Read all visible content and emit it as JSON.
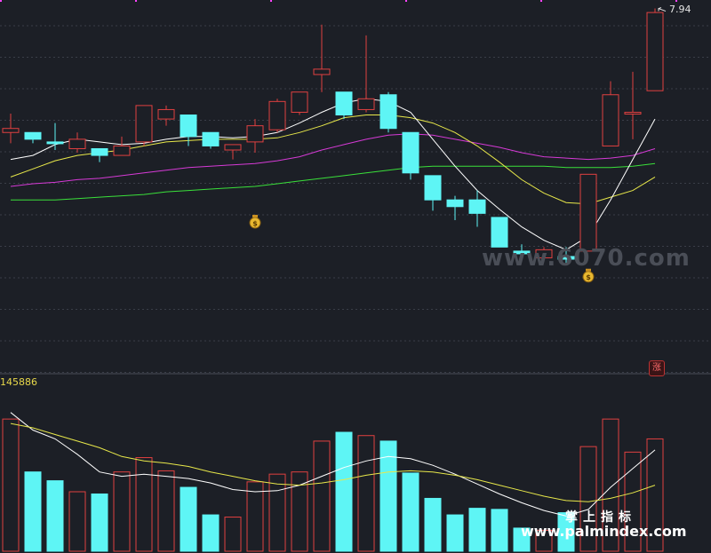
{
  "chart_data": [
    {
      "type": "candlestick",
      "ylim": [
        5.3,
        8.0
      ],
      "last_price_label": "7.94",
      "colors": {
        "up": "#e04040",
        "down": "#5ef5f5",
        "ma5": "#ffffff",
        "ma10": "#e8e84a",
        "ma20": "#d63ad6",
        "ma60": "#3ae03a",
        "grid": "#3a3e48",
        "background": "#1c1f26"
      },
      "candles": [
        {
          "o": 7.05,
          "h": 7.19,
          "l": 6.97,
          "c": 7.08
        },
        {
          "o": 7.05,
          "h": 7.05,
          "l": 6.97,
          "c": 7.0
        },
        {
          "o": 6.98,
          "h": 7.12,
          "l": 6.92,
          "c": 6.97
        },
        {
          "o": 6.93,
          "h": 7.05,
          "l": 6.9,
          "c": 7.0
        },
        {
          "o": 6.93,
          "h": 6.93,
          "l": 6.83,
          "c": 6.88
        },
        {
          "o": 6.88,
          "h": 7.02,
          "l": 6.88,
          "c": 6.95
        },
        {
          "o": 6.98,
          "h": 7.25,
          "l": 6.95,
          "c": 7.25
        },
        {
          "o": 7.15,
          "h": 7.25,
          "l": 7.1,
          "c": 7.22
        },
        {
          "o": 7.18,
          "h": 7.18,
          "l": 6.95,
          "c": 7.02
        },
        {
          "o": 7.05,
          "h": 7.05,
          "l": 6.93,
          "c": 6.95
        },
        {
          "o": 6.92,
          "h": 6.96,
          "l": 6.85,
          "c": 6.96
        },
        {
          "o": 6.98,
          "h": 7.15,
          "l": 6.9,
          "c": 7.1
        },
        {
          "o": 7.07,
          "h": 7.3,
          "l": 7.05,
          "c": 7.28
        },
        {
          "o": 7.2,
          "h": 7.35,
          "l": 7.18,
          "c": 7.35
        },
        {
          "o": 7.48,
          "h": 7.85,
          "l": 7.35,
          "c": 7.52
        },
        {
          "o": 7.35,
          "h": 7.35,
          "l": 7.15,
          "c": 7.18
        },
        {
          "o": 7.22,
          "h": 7.77,
          "l": 7.2,
          "c": 7.3
        },
        {
          "o": 7.33,
          "h": 7.35,
          "l": 7.05,
          "c": 7.08
        },
        {
          "o": 7.05,
          "h": 7.05,
          "l": 6.7,
          "c": 6.75
        },
        {
          "o": 6.73,
          "h": 6.73,
          "l": 6.47,
          "c": 6.55
        },
        {
          "o": 6.55,
          "h": 6.58,
          "l": 6.4,
          "c": 6.5
        },
        {
          "o": 6.55,
          "h": 6.62,
          "l": 6.35,
          "c": 6.45
        },
        {
          "o": 6.42,
          "h": 6.42,
          "l": 6.2,
          "c": 6.2
        },
        {
          "o": 6.17,
          "h": 6.22,
          "l": 6.11,
          "c": 6.15
        },
        {
          "o": 6.12,
          "h": 6.2,
          "l": 6.12,
          "c": 6.18
        },
        {
          "o": 6.13,
          "h": 6.2,
          "l": 6.07,
          "c": 6.11
        },
        {
          "o": 6.17,
          "h": 6.74,
          "l": 6.17,
          "c": 6.74
        },
        {
          "o": 6.95,
          "h": 7.43,
          "l": 6.95,
          "c": 7.33
        },
        {
          "o": 7.2,
          "h": 7.5,
          "l": 7.0,
          "c": 7.2
        },
        {
          "o": 7.36,
          "h": 7.97,
          "l": 7.36,
          "c": 7.94
        }
      ],
      "ma5": [
        6.85,
        6.88,
        6.96,
        7.0,
        6.98,
        6.96,
        6.97,
        7.0,
        7.02,
        7.02,
        7.01,
        7.02,
        7.05,
        7.12,
        7.2,
        7.27,
        7.3,
        7.28,
        7.2,
        7.0,
        6.8,
        6.62,
        6.48,
        6.35,
        6.25,
        6.18,
        6.28,
        6.55,
        6.85,
        7.15
      ],
      "ma10": [
        6.72,
        6.78,
        6.84,
        6.88,
        6.9,
        6.92,
        6.95,
        6.98,
        6.99,
        7.0,
        7.0,
        7.0,
        7.01,
        7.05,
        7.1,
        7.16,
        7.18,
        7.18,
        7.16,
        7.12,
        7.05,
        6.95,
        6.83,
        6.7,
        6.6,
        6.53,
        6.52,
        6.57,
        6.62,
        6.72
      ],
      "ma20": [
        6.65,
        6.67,
        6.68,
        6.7,
        6.71,
        6.73,
        6.75,
        6.77,
        6.79,
        6.8,
        6.81,
        6.82,
        6.84,
        6.87,
        6.92,
        6.96,
        7.0,
        7.03,
        7.04,
        7.03,
        7.0,
        6.97,
        6.94,
        6.9,
        6.87,
        6.86,
        6.85,
        6.86,
        6.88,
        6.93
      ],
      "ma60": [
        6.55,
        6.55,
        6.55,
        6.56,
        6.57,
        6.58,
        6.59,
        6.61,
        6.62,
        6.63,
        6.64,
        6.65,
        6.67,
        6.69,
        6.71,
        6.73,
        6.75,
        6.77,
        6.79,
        6.8,
        6.8,
        6.8,
        6.8,
        6.8,
        6.8,
        6.79,
        6.79,
        6.79,
        6.8,
        6.82
      ],
      "annotations": [
        {
          "icon": "money-bag-icon",
          "at_index": 11,
          "y": 6.38
        },
        {
          "icon": "money-bag-icon",
          "at_index": 26,
          "y": 5.98
        },
        {
          "icon": "arrow-left-icon",
          "at_index": 29,
          "y": 7.97
        }
      ]
    },
    {
      "type": "bar",
      "value_label": "145886",
      "ylim": [
        0,
        145886
      ],
      "values": [
        120000,
        72000,
        64000,
        54000,
        52000,
        72000,
        85000,
        73000,
        58000,
        33000,
        31000,
        63000,
        70000,
        72000,
        100000,
        108000,
        105000,
        100000,
        71000,
        48000,
        33000,
        39000,
        38000,
        21000,
        19000,
        35000,
        95000,
        120000,
        90000,
        102000
      ],
      "ma1": [
        126000,
        110000,
        102000,
        88000,
        72000,
        68000,
        70000,
        68000,
        66000,
        62000,
        56000,
        54000,
        55000,
        60000,
        68000,
        76000,
        82000,
        86000,
        84000,
        78000,
        70000,
        61000,
        52000,
        44000,
        37000,
        32000,
        38000,
        58000,
        75000,
        92000
      ],
      "ma2": [
        116000,
        112000,
        106000,
        100000,
        94000,
        86000,
        82000,
        80000,
        77000,
        72000,
        68000,
        64000,
        61000,
        60000,
        62000,
        65000,
        69000,
        72000,
        73000,
        72000,
        69000,
        65000,
        60000,
        55000,
        50000,
        46000,
        45000,
        48000,
        53000,
        60000
      ]
    }
  ],
  "overlay": {
    "watermark": "www.6070.com",
    "cn_label": "掌上指标",
    "site_label": "www.palmindex.com",
    "zhang_badge": "涨"
  }
}
